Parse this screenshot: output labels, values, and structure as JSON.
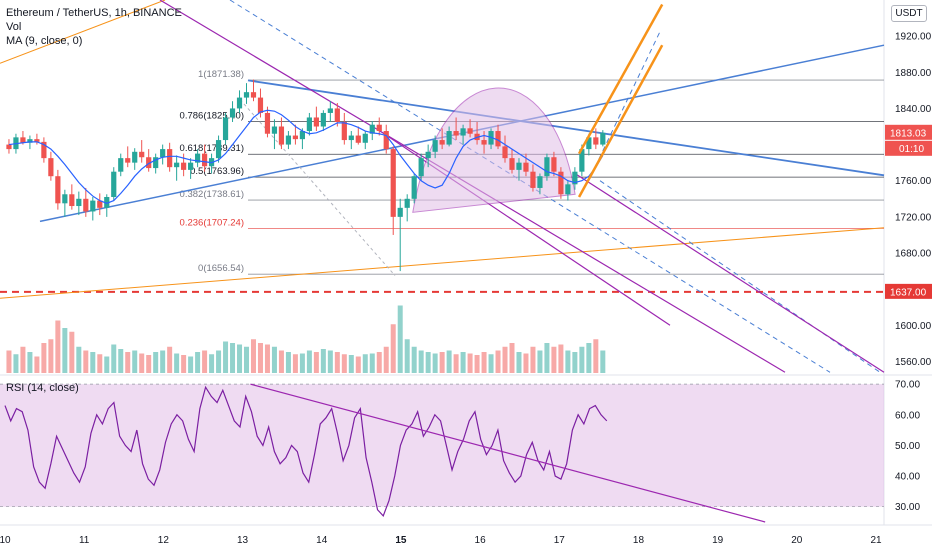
{
  "header": {
    "title": "Ethereum / TetherUS, 1h, BINANCE",
    "vol_label": "Vol",
    "ma_label": "MA (9, close, 0)",
    "currency": "USDT"
  },
  "rsi": {
    "label": "RSI (14, close)",
    "ticks": [
      "70.00",
      "60.00",
      "50.00",
      "40.00",
      "30.00"
    ],
    "tick_values": [
      70,
      60,
      50,
      40,
      30
    ],
    "range": [
      25,
      72
    ],
    "colors": {
      "line": "#7b1fa2",
      "band": "#e1bee7",
      "trend": "#9c27b0"
    },
    "values": [
      63,
      58,
      62,
      61,
      55,
      43,
      38,
      36,
      44,
      53,
      49,
      45,
      41,
      38,
      43,
      54,
      60,
      57,
      62,
      64,
      53,
      50,
      48,
      55,
      44,
      39,
      37,
      42,
      51,
      57,
      60,
      58,
      52,
      48,
      62,
      69,
      66,
      64,
      68,
      63,
      58,
      56,
      66,
      61,
      53,
      50,
      56,
      48,
      44,
      46,
      50,
      48,
      41,
      38,
      47,
      57,
      59,
      62,
      54,
      45,
      50,
      59,
      62,
      46,
      38,
      29,
      27,
      32,
      40,
      50,
      55,
      57,
      61,
      53,
      56,
      60,
      58,
      50,
      42,
      48,
      52,
      58,
      61,
      52,
      47,
      50,
      55,
      45,
      41,
      38,
      40,
      47,
      51,
      45,
      42,
      48,
      40,
      39,
      44,
      55,
      60,
      57,
      62,
      63,
      60,
      58
    ]
  },
  "chart_data": {
    "type": "candlestick",
    "title": "Ethereum / TetherUS, 1h, BINANCE",
    "yaxis_ticks": [
      1920,
      1880,
      1840,
      1800,
      1760,
      1720,
      1680,
      1640,
      1600,
      1560
    ],
    "yaxis_tick_labels": [
      "1920.00",
      "1880.00",
      "1840.00",
      "",
      "1760.00",
      "1720.00",
      "1680.00",
      "",
      "1600.00",
      "1560.00"
    ],
    "ylim": [
      1545,
      1960
    ],
    "xaxis_ticks": [
      "10",
      "11",
      "12",
      "13",
      "14",
      "15",
      "16",
      "17",
      "18",
      "19",
      "20",
      "21"
    ],
    "xaxis_bold": [
      "15"
    ],
    "xlim": [
      10,
      21
    ],
    "current_price": "1813.03",
    "countdown": "01:10",
    "support_level": {
      "value": 1637.0,
      "label": "1637.00",
      "color": "#e53935"
    },
    "fibonacci": [
      {
        "label": "1(1871.38)",
        "value": 1871.38,
        "color": "#787b86"
      },
      {
        "label": "0.786(1825.40)",
        "value": 1825.4,
        "color": "#131722"
      },
      {
        "label": "0.618(1789.31)",
        "value": 1789.31,
        "color": "#131722"
      },
      {
        "label": "0.5(1763.96)",
        "value": 1763.96,
        "color": "#131722"
      },
      {
        "label": "0.382(1738.61)",
        "value": 1738.61,
        "color": "#787b86"
      },
      {
        "label": "0.236(1707.24)",
        "value": 1707.24,
        "color": "#e53935"
      },
      {
        "label": "0(1656.54)",
        "value": 1656.54,
        "color": "#787b86"
      }
    ],
    "colors": {
      "up": "#26a69a",
      "down": "#ef5350",
      "ma": "#2962ff",
      "trend_blue": "#4a7fd4",
      "orange": "#f7931a",
      "purple": "#9c27b0",
      "pattern_fill": "#e1bee7"
    },
    "candles": [
      [
        1800,
        1806,
        1790,
        1795
      ],
      [
        1795,
        1812,
        1790,
        1808
      ],
      [
        1808,
        1815,
        1800,
        1802
      ],
      [
        1802,
        1810,
        1795,
        1806
      ],
      [
        1806,
        1812,
        1800,
        1803
      ],
      [
        1803,
        1808,
        1780,
        1785
      ],
      [
        1785,
        1792,
        1760,
        1765
      ],
      [
        1765,
        1772,
        1728,
        1735
      ],
      [
        1735,
        1750,
        1720,
        1745
      ],
      [
        1745,
        1756,
        1728,
        1732
      ],
      [
        1732,
        1748,
        1722,
        1740
      ],
      [
        1740,
        1752,
        1720,
        1726
      ],
      [
        1726,
        1742,
        1716,
        1738
      ],
      [
        1738,
        1746,
        1722,
        1730
      ],
      [
        1730,
        1745,
        1720,
        1742
      ],
      [
        1742,
        1775,
        1738,
        1770
      ],
      [
        1770,
        1790,
        1765,
        1785
      ],
      [
        1785,
        1798,
        1775,
        1780
      ],
      [
        1780,
        1796,
        1772,
        1792
      ],
      [
        1792,
        1805,
        1780,
        1786
      ],
      [
        1786,
        1795,
        1770,
        1774
      ],
      [
        1774,
        1790,
        1768,
        1786
      ],
      [
        1786,
        1800,
        1778,
        1795
      ],
      [
        1795,
        1802,
        1770,
        1775
      ],
      [
        1775,
        1788,
        1760,
        1780
      ],
      [
        1780,
        1790,
        1765,
        1772
      ],
      [
        1772,
        1785,
        1762,
        1780
      ],
      [
        1780,
        1795,
        1775,
        1790
      ],
      [
        1790,
        1800,
        1770,
        1776
      ],
      [
        1776,
        1790,
        1768,
        1785
      ],
      [
        1785,
        1810,
        1780,
        1805
      ],
      [
        1805,
        1835,
        1800,
        1830
      ],
      [
        1830,
        1848,
        1825,
        1840
      ],
      [
        1840,
        1860,
        1835,
        1852
      ],
      [
        1852,
        1868,
        1845,
        1858
      ],
      [
        1858,
        1872,
        1848,
        1852
      ],
      [
        1852,
        1862,
        1830,
        1835
      ],
      [
        1835,
        1842,
        1808,
        1812
      ],
      [
        1812,
        1828,
        1795,
        1820
      ],
      [
        1820,
        1830,
        1795,
        1800
      ],
      [
        1800,
        1815,
        1795,
        1810
      ],
      [
        1810,
        1822,
        1800,
        1806
      ],
      [
        1806,
        1818,
        1795,
        1815
      ],
      [
        1815,
        1835,
        1810,
        1830
      ],
      [
        1830,
        1842,
        1815,
        1820
      ],
      [
        1820,
        1838,
        1815,
        1835
      ],
      [
        1835,
        1848,
        1825,
        1840
      ],
      [
        1840,
        1846,
        1820,
        1825
      ],
      [
        1825,
        1835,
        1800,
        1805
      ],
      [
        1805,
        1815,
        1795,
        1810
      ],
      [
        1810,
        1820,
        1800,
        1802
      ],
      [
        1802,
        1815,
        1795,
        1812
      ],
      [
        1812,
        1826,
        1805,
        1822
      ],
      [
        1822,
        1830,
        1810,
        1815
      ],
      [
        1815,
        1822,
        1790,
        1795
      ],
      [
        1795,
        1798,
        1700,
        1720
      ],
      [
        1720,
        1740,
        1660,
        1730
      ],
      [
        1730,
        1745,
        1715,
        1740
      ],
      [
        1740,
        1768,
        1735,
        1765
      ],
      [
        1765,
        1790,
        1760,
        1785
      ],
      [
        1785,
        1800,
        1775,
        1792
      ],
      [
        1792,
        1810,
        1785,
        1805
      ],
      [
        1805,
        1818,
        1795,
        1800
      ],
      [
        1800,
        1820,
        1798,
        1815
      ],
      [
        1815,
        1830,
        1805,
        1810
      ],
      [
        1810,
        1822,
        1800,
        1818
      ],
      [
        1818,
        1828,
        1808,
        1812
      ],
      [
        1812,
        1825,
        1800,
        1805
      ],
      [
        1805,
        1815,
        1790,
        1800
      ],
      [
        1800,
        1818,
        1795,
        1815
      ],
      [
        1815,
        1822,
        1795,
        1798
      ],
      [
        1798,
        1810,
        1780,
        1785
      ],
      [
        1785,
        1795,
        1768,
        1772
      ],
      [
        1772,
        1785,
        1760,
        1780
      ],
      [
        1780,
        1790,
        1765,
        1770
      ],
      [
        1770,
        1778,
        1748,
        1752
      ],
      [
        1752,
        1768,
        1745,
        1765
      ],
      [
        1765,
        1790,
        1760,
        1786
      ],
      [
        1786,
        1792,
        1765,
        1770
      ],
      [
        1770,
        1775,
        1740,
        1745
      ],
      [
        1745,
        1760,
        1738,
        1756
      ],
      [
        1756,
        1775,
        1750,
        1770
      ],
      [
        1770,
        1800,
        1765,
        1795
      ],
      [
        1795,
        1812,
        1788,
        1808
      ],
      [
        1808,
        1818,
        1795,
        1800
      ],
      [
        1800,
        1816,
        1798,
        1813
      ]
    ],
    "volumes": [
      30,
      25,
      35,
      28,
      22,
      40,
      45,
      70,
      60,
      55,
      35,
      30,
      28,
      25,
      22,
      38,
      32,
      28,
      30,
      26,
      24,
      28,
      30,
      35,
      26,
      24,
      22,
      28,
      30,
      25,
      30,
      42,
      40,
      38,
      35,
      45,
      40,
      38,
      35,
      30,
      28,
      25,
      26,
      30,
      28,
      32,
      30,
      28,
      25,
      24,
      22,
      25,
      26,
      28,
      35,
      65,
      90,
      45,
      35,
      30,
      28,
      26,
      28,
      30,
      25,
      28,
      26,
      24,
      28,
      25,
      30,
      35,
      40,
      28,
      26,
      35,
      30,
      40,
      35,
      38,
      30,
      28,
      35,
      40,
      45,
      30
    ],
    "ma9": [
      1800,
      1801,
      1802,
      1803,
      1803,
      1800,
      1795,
      1787,
      1778,
      1768,
      1758,
      1750,
      1743,
      1738,
      1735,
      1738,
      1746,
      1755,
      1765,
      1773,
      1779,
      1783,
      1786,
      1787,
      1787,
      1785,
      1783,
      1782,
      1781,
      1780,
      1783,
      1790,
      1800,
      1810,
      1820,
      1830,
      1836,
      1838,
      1837,
      1833,
      1827,
      1820,
      1815,
      1812,
      1813,
      1816,
      1820,
      1824,
      1824,
      1822,
      1819,
      1815,
      1813,
      1812,
      1810,
      1800,
      1788,
      1778,
      1768,
      1760,
      1755,
      1752,
      1755,
      1768,
      1785,
      1798,
      1805,
      1808,
      1810,
      1808,
      1805,
      1800,
      1795,
      1790,
      1785,
      1780,
      1775,
      1770,
      1768,
      1765,
      1760,
      1758,
      1760,
      1765,
      1775,
      1788
    ]
  }
}
